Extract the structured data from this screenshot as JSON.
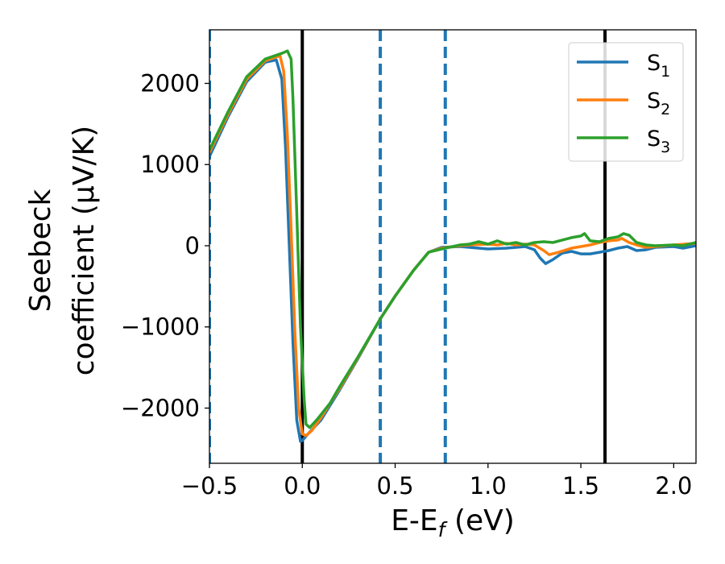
{
  "chart_data": {
    "type": "line",
    "xlabel": "E-E",
    "xlabel_sub": "f",
    "xlabel_unit": "(eV)",
    "ylabel_line1": "Seebeck",
    "ylabel_line2": "coefficient  (μV/K)",
    "xlim": [
      -0.5,
      2.12
    ],
    "ylim": [
      -2680,
      2660
    ],
    "xticks": [
      -0.5,
      0.0,
      0.5,
      1.0,
      1.5,
      2.0
    ],
    "xtick_labels": [
      "−0.5",
      "0.0",
      "0.5",
      "1.0",
      "1.5",
      "2.0"
    ],
    "yticks": [
      -2000,
      -1000,
      0,
      1000,
      2000
    ],
    "ytick_labels": [
      "−2000",
      "−1000",
      "0",
      "1000",
      "2000"
    ],
    "legend_position": "top-right",
    "vlines": [
      {
        "x": -0.5,
        "style": "dashed",
        "color": "#1f77b4"
      },
      {
        "x": 0.0,
        "style": "solid",
        "color": "#000000"
      },
      {
        "x": 0.42,
        "style": "dashed",
        "color": "#1f77b4"
      },
      {
        "x": 0.77,
        "style": "dashed",
        "color": "#1f77b4"
      },
      {
        "x": 1.63,
        "style": "solid",
        "color": "#000000"
      }
    ],
    "series": [
      {
        "name": "S",
        "sub": "1",
        "color": "#1f77b4",
        "points": [
          [
            -0.5,
            1100
          ],
          [
            -0.4,
            1590
          ],
          [
            -0.3,
            2020
          ],
          [
            -0.2,
            2260
          ],
          [
            -0.14,
            2290
          ],
          [
            -0.11,
            2050
          ],
          [
            -0.09,
            1200
          ],
          [
            -0.07,
            0
          ],
          [
            -0.05,
            -1200
          ],
          [
            -0.03,
            -2150
          ],
          [
            -0.01,
            -2410
          ],
          [
            0.0,
            -2400
          ],
          [
            0.03,
            -2320
          ],
          [
            0.1,
            -2150
          ],
          [
            0.2,
            -1780
          ],
          [
            0.3,
            -1390
          ],
          [
            0.42,
            -900
          ],
          [
            0.5,
            -620
          ],
          [
            0.6,
            -300
          ],
          [
            0.68,
            -80
          ],
          [
            0.75,
            -20
          ],
          [
            0.85,
            -10
          ],
          [
            0.9,
            -20
          ],
          [
            1.0,
            -40
          ],
          [
            1.1,
            -30
          ],
          [
            1.2,
            -10
          ],
          [
            1.25,
            -50
          ],
          [
            1.28,
            -150
          ],
          [
            1.31,
            -220
          ],
          [
            1.35,
            -170
          ],
          [
            1.4,
            -90
          ],
          [
            1.45,
            -70
          ],
          [
            1.5,
            -100
          ],
          [
            1.55,
            -100
          ],
          [
            1.6,
            -80
          ],
          [
            1.65,
            -60
          ],
          [
            1.7,
            -30
          ],
          [
            1.75,
            -10
          ],
          [
            1.8,
            -60
          ],
          [
            1.85,
            -50
          ],
          [
            1.9,
            -20
          ],
          [
            2.0,
            -10
          ],
          [
            2.05,
            -30
          ],
          [
            2.12,
            0
          ]
        ]
      },
      {
        "name": "S",
        "sub": "2",
        "color": "#ff7f0e",
        "points": [
          [
            -0.5,
            1150
          ],
          [
            -0.4,
            1620
          ],
          [
            -0.3,
            2050
          ],
          [
            -0.2,
            2280
          ],
          [
            -0.12,
            2340
          ],
          [
            -0.1,
            2150
          ],
          [
            -0.08,
            1350
          ],
          [
            -0.06,
            200
          ],
          [
            -0.04,
            -1050
          ],
          [
            -0.02,
            -2000
          ],
          [
            0.0,
            -2320
          ],
          [
            0.02,
            -2340
          ],
          [
            0.05,
            -2280
          ],
          [
            0.1,
            -2120
          ],
          [
            0.2,
            -1760
          ],
          [
            0.3,
            -1380
          ],
          [
            0.42,
            -900
          ],
          [
            0.5,
            -620
          ],
          [
            0.6,
            -300
          ],
          [
            0.68,
            -80
          ],
          [
            0.75,
            -30
          ],
          [
            0.85,
            0
          ],
          [
            0.9,
            10
          ],
          [
            1.0,
            20
          ],
          [
            1.05,
            10
          ],
          [
            1.1,
            30
          ],
          [
            1.15,
            10
          ],
          [
            1.2,
            20
          ],
          [
            1.25,
            10
          ],
          [
            1.3,
            -60
          ],
          [
            1.33,
            -110
          ],
          [
            1.38,
            -80
          ],
          [
            1.45,
            -30
          ],
          [
            1.5,
            -10
          ],
          [
            1.55,
            10
          ],
          [
            1.6,
            40
          ],
          [
            1.65,
            60
          ],
          [
            1.7,
            70
          ],
          [
            1.72,
            90
          ],
          [
            1.76,
            40
          ],
          [
            1.8,
            10
          ],
          [
            1.85,
            -20
          ],
          [
            1.9,
            -10
          ],
          [
            2.0,
            10
          ],
          [
            2.12,
            30
          ]
        ]
      },
      {
        "name": "S",
        "sub": "3",
        "color": "#2ca02c",
        "points": [
          [
            -0.5,
            1180
          ],
          [
            -0.4,
            1650
          ],
          [
            -0.3,
            2080
          ],
          [
            -0.2,
            2300
          ],
          [
            -0.11,
            2370
          ],
          [
            -0.08,
            2400
          ],
          [
            -0.06,
            2300
          ],
          [
            -0.05,
            1800
          ],
          [
            -0.03,
            400
          ],
          [
            -0.01,
            -1000
          ],
          [
            0.01,
            -1900
          ],
          [
            0.02,
            -2200
          ],
          [
            0.04,
            -2240
          ],
          [
            0.08,
            -2140
          ],
          [
            0.15,
            -1940
          ],
          [
            0.2,
            -1740
          ],
          [
            0.3,
            -1370
          ],
          [
            0.42,
            -900
          ],
          [
            0.5,
            -620
          ],
          [
            0.6,
            -300
          ],
          [
            0.68,
            -80
          ],
          [
            0.75,
            -40
          ],
          [
            0.85,
            10
          ],
          [
            0.9,
            20
          ],
          [
            0.95,
            50
          ],
          [
            1.0,
            20
          ],
          [
            1.05,
            60
          ],
          [
            1.1,
            20
          ],
          [
            1.15,
            40
          ],
          [
            1.2,
            10
          ],
          [
            1.25,
            40
          ],
          [
            1.3,
            50
          ],
          [
            1.35,
            40
          ],
          [
            1.4,
            70
          ],
          [
            1.45,
            100
          ],
          [
            1.5,
            120
          ],
          [
            1.52,
            150
          ],
          [
            1.55,
            60
          ],
          [
            1.6,
            50
          ],
          [
            1.65,
            90
          ],
          [
            1.7,
            110
          ],
          [
            1.73,
            150
          ],
          [
            1.76,
            130
          ],
          [
            1.8,
            40
          ],
          [
            1.85,
            10
          ],
          [
            1.9,
            0
          ],
          [
            2.0,
            10
          ],
          [
            2.05,
            0
          ],
          [
            2.12,
            40
          ]
        ]
      }
    ]
  }
}
